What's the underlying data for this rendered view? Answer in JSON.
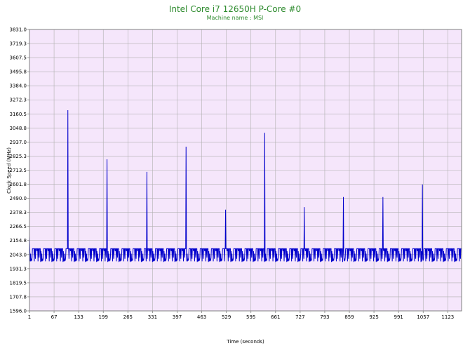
{
  "chart_data": {
    "type": "line",
    "title": "Intel Core i7 12650H P-Core #0",
    "subtitle": "Machine name : MSI",
    "xlabel": "Time (seconds)",
    "ylabel": "Clock Speed (MHz)",
    "xlim": [
      1,
      1160
    ],
    "ylim": [
      1596.0,
      3831.0
    ],
    "x_ticks": [
      "1",
      "67",
      "133",
      "199",
      "265",
      "331",
      "397",
      "463",
      "529",
      "595",
      "661",
      "727",
      "793",
      "859",
      "925",
      "991",
      "1057",
      "1123"
    ],
    "x_tick_values": [
      1,
      67,
      133,
      199,
      265,
      331,
      397,
      463,
      529,
      595,
      661,
      727,
      793,
      859,
      925,
      991,
      1057,
      1123
    ],
    "y_ticks": [
      "1596.0",
      "1707.8",
      "1819.5",
      "1931.3",
      "2043.0",
      "2154.8",
      "2266.5",
      "2378.3",
      "2490.0",
      "2601.8",
      "2713.5",
      "2825.3",
      "2937.0",
      "3048.8",
      "3160.5",
      "3272.3",
      "3384.0",
      "3495.8",
      "3607.5",
      "3719.3",
      "3831.0"
    ],
    "grid": true,
    "colors": {
      "line": "#0000cc",
      "plot_background": "#f5e6fb",
      "grid": "#b0b0b0",
      "title": "#2e8b2e"
    },
    "series": [
      {
        "baseline_values": [
          2090,
          2090,
          1990,
          2090,
          2010,
          2090,
          2090,
          1985,
          2090,
          2050,
          2090,
          1995,
          2090,
          2090,
          2070,
          2090,
          1990,
          2090,
          2020,
          2090
        ],
        "spikes": [
          {
            "x": 1,
            "y": 2190
          },
          {
            "x": 104,
            "y": 3190
          },
          {
            "x": 209,
            "y": 2800
          },
          {
            "x": 316,
            "y": 2700
          },
          {
            "x": 421,
            "y": 2900
          },
          {
            "x": 527,
            "y": 2400
          },
          {
            "x": 632,
            "y": 3010
          },
          {
            "x": 738,
            "y": 2420
          },
          {
            "x": 843,
            "y": 2500
          },
          {
            "x": 949,
            "y": 2500
          },
          {
            "x": 1055,
            "y": 2600
          }
        ]
      }
    ]
  }
}
